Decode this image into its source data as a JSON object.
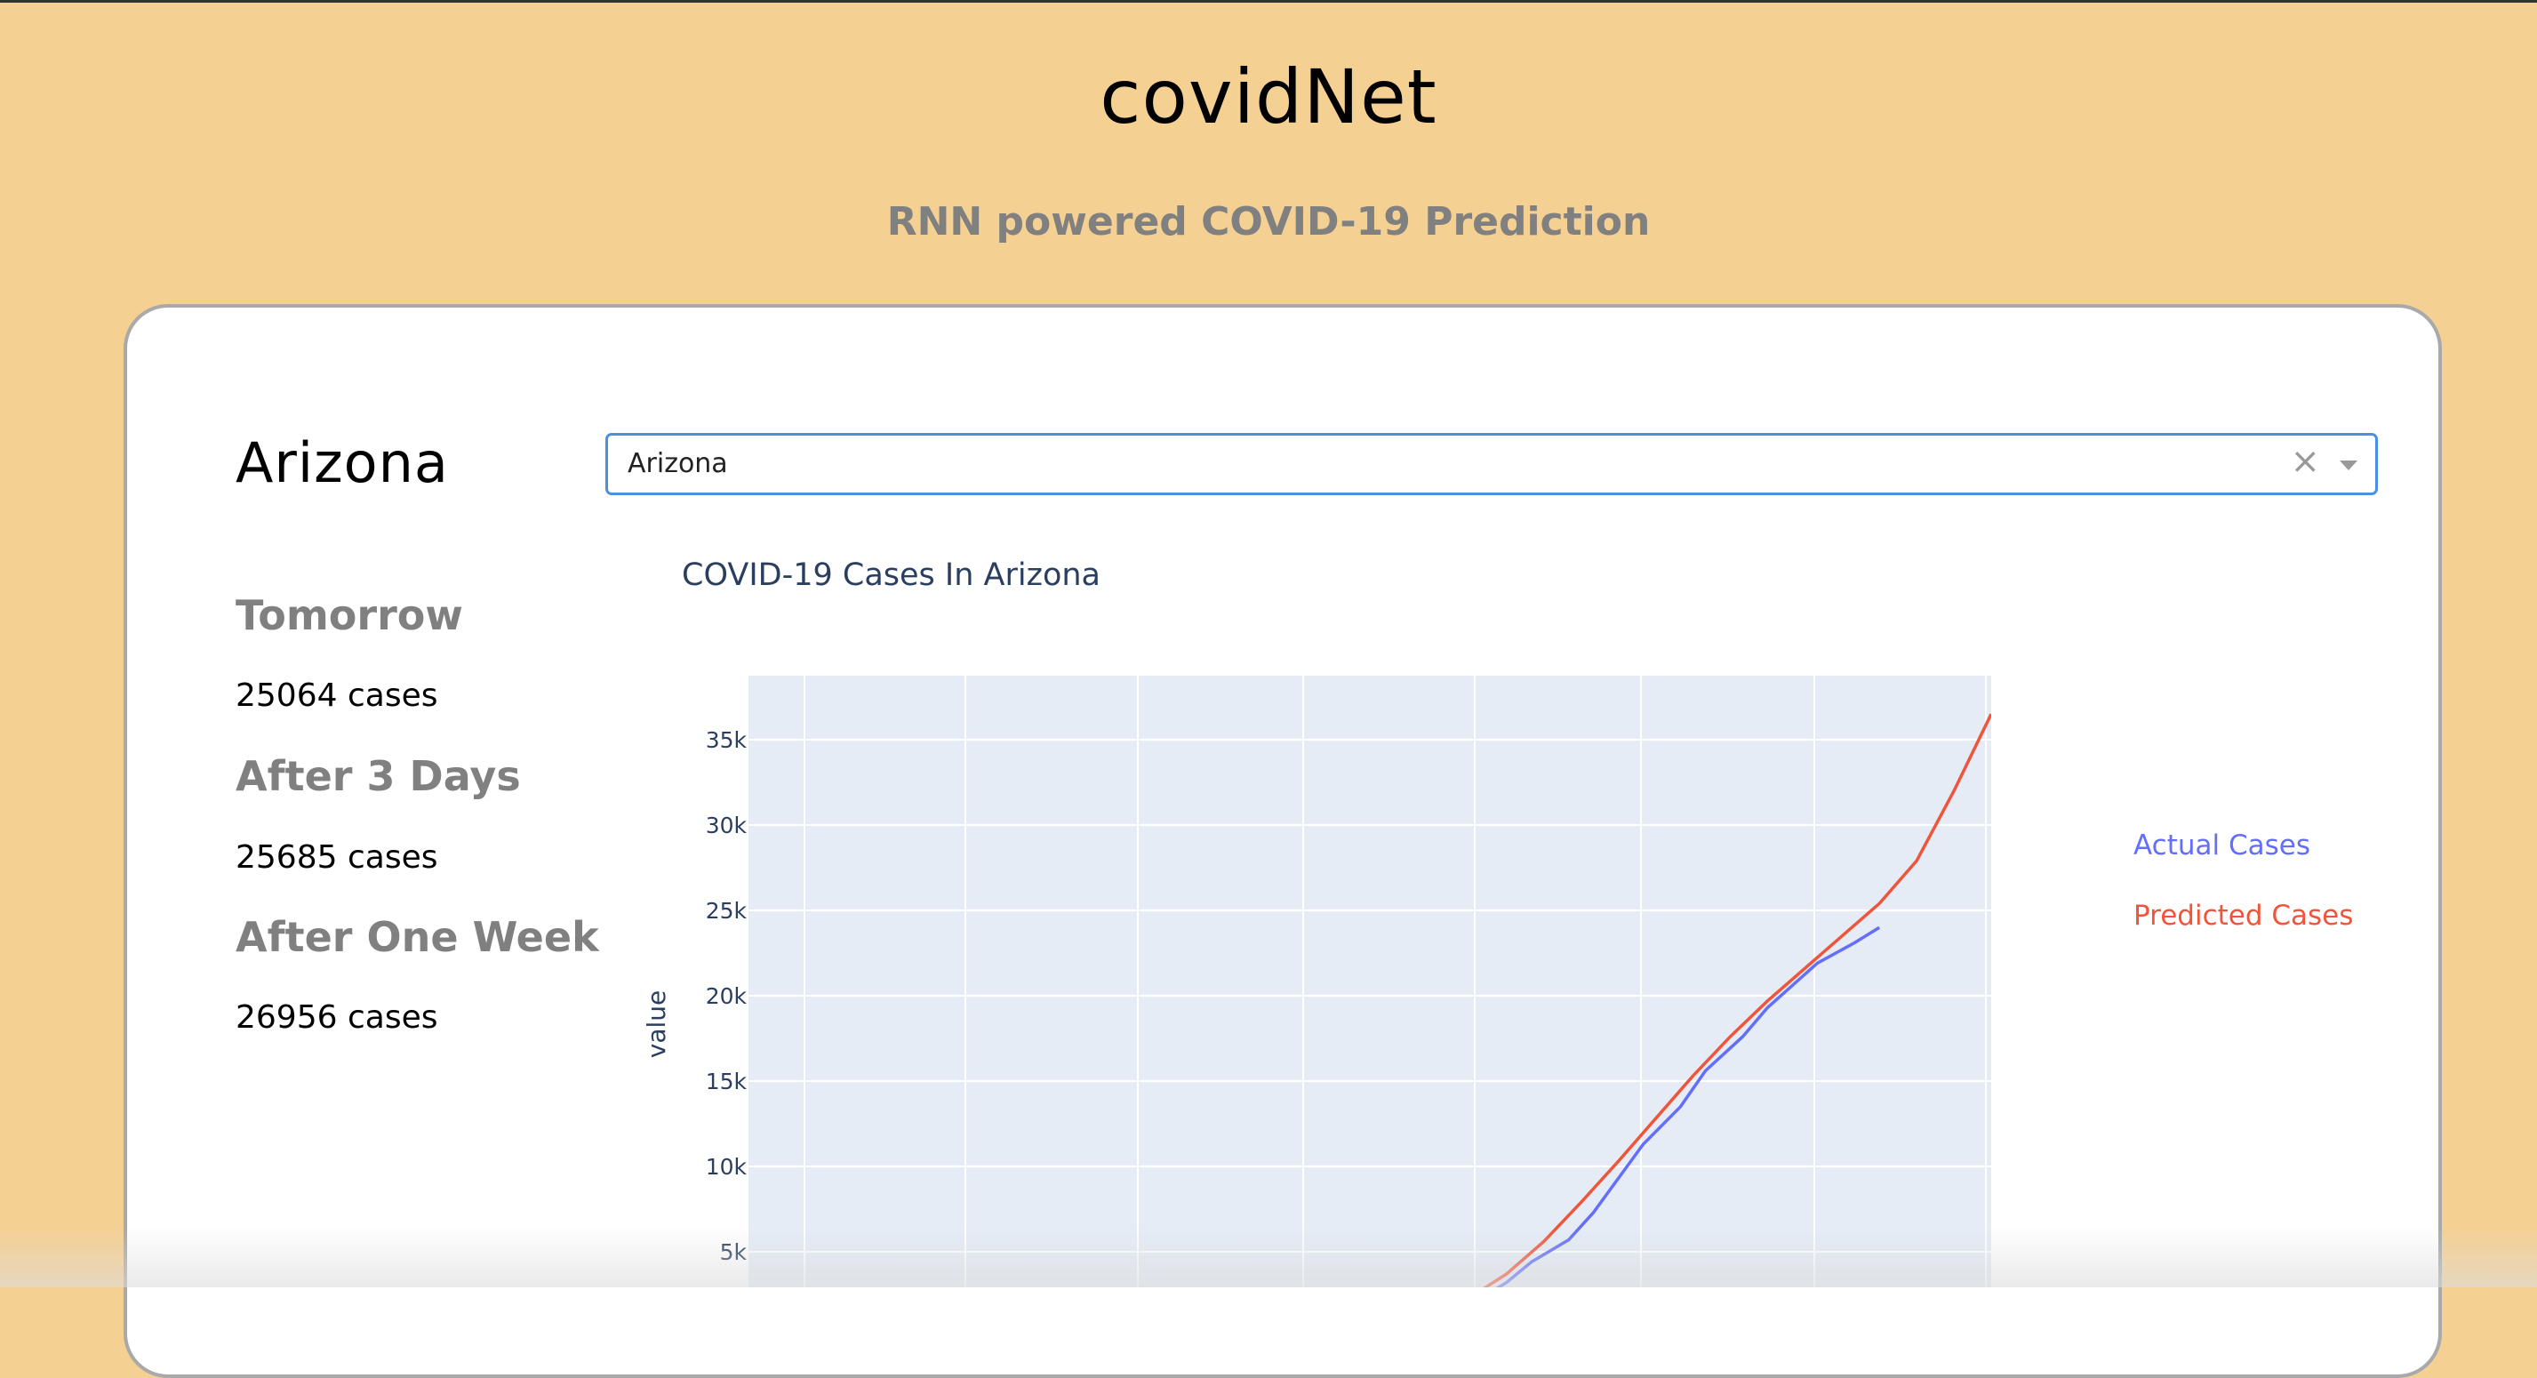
{
  "header": {
    "title": "covidNet",
    "subtitle": "RNN powered COVID-19 Prediction"
  },
  "state": {
    "name": "Arizona"
  },
  "select": {
    "value": "Arizona",
    "clear_symbol": "×"
  },
  "predictions": [
    {
      "label": "Tomorrow",
      "value": "25064 cases"
    },
    {
      "label": "After 3 Days",
      "value": "25685 cases"
    },
    {
      "label": "After One Week",
      "value": "26956 cases"
    }
  ],
  "colors": {
    "background": "#f5d093",
    "actual": "#636efa",
    "predicted": "#ef553b",
    "plot_bg": "#e5ecf6",
    "axis_text": "#2a3f5f"
  },
  "chart_data": {
    "type": "line",
    "title": "COVID-19 Cases In Arizona",
    "ylabel": "value",
    "xlabel": "",
    "y_ticks": [
      "5k",
      "10k",
      "15k",
      "20k",
      "25k",
      "30k",
      "35k"
    ],
    "ylim": [
      0,
      38500
    ],
    "xlim": [
      0,
      1
    ],
    "legend_position": "right",
    "series": [
      {
        "name": "Actual Cases",
        "color": "#636efa",
        "x": [
          0.59,
          0.61,
          0.63,
          0.66,
          0.68,
          0.7,
          0.72,
          0.75,
          0.77,
          0.8,
          0.82,
          0.84,
          0.86,
          0.89,
          0.91
        ],
        "y": [
          2300,
          3200,
          4400,
          5700,
          7300,
          9300,
          11300,
          13500,
          15600,
          17600,
          19300,
          20600,
          21900,
          23100,
          24000
        ]
      },
      {
        "name": "Predicted Cases",
        "color": "#ef553b",
        "x": [
          0.58,
          0.61,
          0.64,
          0.67,
          0.7,
          0.73,
          0.76,
          0.79,
          0.82,
          0.85,
          0.88,
          0.91,
          0.94,
          0.97,
          1.0
        ],
        "y": [
          2300,
          3700,
          5600,
          7900,
          10300,
          12800,
          15300,
          17600,
          19700,
          21600,
          23500,
          25400,
          27900,
          32000,
          36500
        ]
      }
    ]
  }
}
